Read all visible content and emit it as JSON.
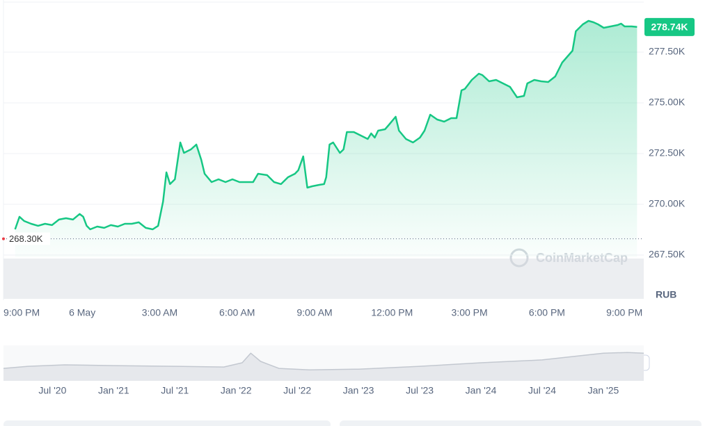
{
  "chart_data": [
    {
      "type": "area",
      "color": "#16c784",
      "grid": true,
      "currency": "RUB",
      "watermark": "CoinMarketCap",
      "reference": {
        "value": 268300,
        "label": "268.30K"
      },
      "last_price": {
        "value": 278740,
        "label": "278.74K"
      },
      "xlim": [
        -0.05,
        24.75
      ],
      "xticks": [
        {
          "value": 0,
          "label": "9:00 PM"
        },
        {
          "value": 3,
          "label": "6 May"
        },
        {
          "value": 6,
          "label": "3:00 AM"
        },
        {
          "value": 9,
          "label": "6:00 AM"
        },
        {
          "value": 12,
          "label": "9:00 AM"
        },
        {
          "value": 15,
          "label": "12:00 PM"
        },
        {
          "value": 18,
          "label": "3:00 PM"
        },
        {
          "value": 21,
          "label": "6:00 PM"
        },
        {
          "value": 24,
          "label": "9:00 PM"
        }
      ],
      "ylim": [
        265340,
        280070
      ],
      "yticks": [
        {
          "value": 267500,
          "label": "267.50K"
        },
        {
          "value": 270000,
          "label": "270.00K"
        },
        {
          "value": 272500,
          "label": "272.50K"
        },
        {
          "value": 275000,
          "label": "275.00K"
        },
        {
          "value": 277500,
          "label": "277.50K"
        }
      ],
      "x": [
        0.4,
        0.57,
        0.75,
        1.02,
        1.29,
        1.56,
        1.83,
        2.1,
        2.37,
        2.64,
        2.9,
        3.04,
        3.17,
        3.31,
        3.58,
        3.85,
        4.11,
        4.38,
        4.65,
        4.92,
        5.19,
        5.46,
        5.73,
        5.94,
        6.13,
        6.26,
        6.4,
        6.59,
        6.8,
        6.94,
        7.21,
        7.42,
        7.61,
        7.74,
        8.01,
        8.28,
        8.55,
        8.82,
        9.09,
        9.36,
        9.62,
        9.81,
        10.16,
        10.43,
        10.7,
        10.97,
        11.24,
        11.37,
        11.56,
        11.72,
        11.91,
        12.18,
        12.37,
        12.45,
        12.58,
        12.72,
        12.98,
        13.12,
        13.25,
        13.52,
        13.79,
        14.06,
        14.19,
        14.33,
        14.46,
        14.73,
        14.87,
        15.14,
        15.27,
        15.54,
        15.81,
        16.08,
        16.26,
        16.48,
        16.75,
        17.02,
        17.29,
        17.5,
        17.69,
        17.82,
        18.09,
        18.36,
        18.5,
        18.76,
        19.03,
        19.3,
        19.57,
        19.84,
        20.11,
        20.24,
        20.51,
        20.78,
        21.05,
        21.32,
        21.59,
        21.99,
        22.12,
        22.39,
        22.61,
        22.8,
        22.98,
        23.2,
        23.47,
        23.74,
        23.87,
        24.01,
        24.28,
        24.49
      ],
      "values": [
        268767,
        269384,
        269178,
        269041,
        268939,
        269041,
        268973,
        269247,
        269315,
        269247,
        269521,
        269384,
        268939,
        268767,
        268904,
        268836,
        268973,
        268904,
        269041,
        269041,
        269110,
        268836,
        268767,
        268939,
        270137,
        271576,
        270994,
        271233,
        273049,
        272535,
        272706,
        272946,
        272192,
        271507,
        271096,
        271233,
        271096,
        271233,
        271096,
        271096,
        271096,
        271507,
        271439,
        271096,
        270994,
        271336,
        271507,
        271679,
        272364,
        270822,
        270891,
        270959,
        270994,
        271336,
        272946,
        273049,
        272535,
        272706,
        273562,
        273562,
        273391,
        273220,
        273494,
        273288,
        273631,
        273699,
        273905,
        274316,
        273631,
        273220,
        273049,
        273288,
        273631,
        274419,
        274179,
        274076,
        274247,
        274247,
        275617,
        275686,
        276131,
        276439,
        276371,
        276063,
        276131,
        275960,
        275789,
        275275,
        275343,
        275960,
        276131,
        276063,
        276028,
        276302,
        276987,
        277570,
        278529,
        278871,
        279042,
        278974,
        278871,
        278700,
        278768,
        278837,
        278905,
        278768,
        278768,
        278740
      ]
    },
    {
      "type": "area",
      "color": "#c3c8d0",
      "xlim": [
        2020.1,
        2025.33
      ],
      "xticks": [
        {
          "value": 2020.5,
          "label": "Jul '20"
        },
        {
          "value": 2021.0,
          "label": "Jan '21"
        },
        {
          "value": 2021.5,
          "label": "Jul '21"
        },
        {
          "value": 2022.0,
          "label": "Jan '22"
        },
        {
          "value": 2022.5,
          "label": "Jul '22"
        },
        {
          "value": 2023.0,
          "label": "Jan '23"
        },
        {
          "value": 2023.5,
          "label": "Jul '23"
        },
        {
          "value": 2024.0,
          "label": "Jan '24"
        },
        {
          "value": 2024.5,
          "label": "Jul '24"
        },
        {
          "value": 2025.0,
          "label": "Jan '25"
        }
      ],
      "ylim": [
        0,
        100
      ],
      "x": [
        2020.1,
        2020.3,
        2020.6,
        2021.0,
        2021.5,
        2021.9,
        2022.05,
        2022.12,
        2022.2,
        2022.35,
        2022.6,
        2023.0,
        2023.5,
        2024.0,
        2024.5,
        2025.0,
        2025.2,
        2025.33
      ],
      "values": [
        35,
        41,
        45,
        43,
        41,
        39,
        51,
        78,
        55,
        35,
        31,
        33,
        41,
        51,
        59,
        78,
        80,
        78
      ]
    }
  ]
}
